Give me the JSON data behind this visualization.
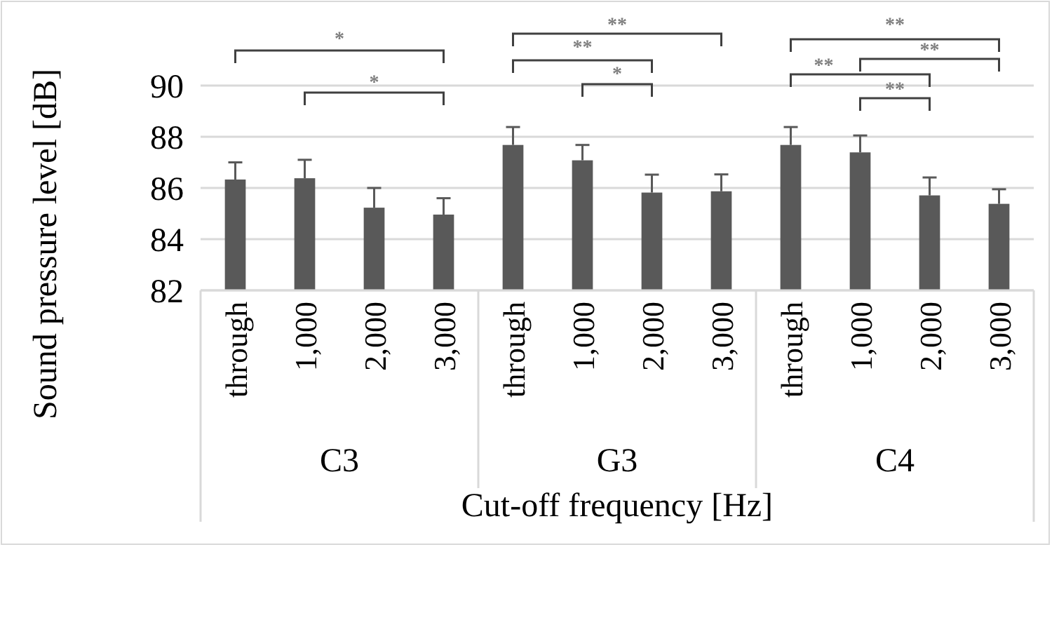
{
  "chart_data": {
    "type": "bar",
    "ylabel": "Sound pressure level [dB]",
    "xlabel": "Cut-off frequency [Hz]",
    "categories": [
      "through",
      "1,000",
      "2,000",
      "3,000",
      "through",
      "1,000",
      "2,000",
      "3,000",
      "through",
      "1,000",
      "2,000",
      "3,000"
    ],
    "values": [
      86.33,
      86.38,
      85.23,
      84.96,
      87.68,
      87.08,
      85.82,
      85.87,
      87.68,
      87.39,
      85.71,
      85.38
    ],
    "errors": [
      0.67,
      0.72,
      0.77,
      0.64,
      0.7,
      0.6,
      0.7,
      0.66,
      0.7,
      0.66,
      0.7,
      0.57
    ],
    "color": "#595959",
    "ylim": [
      82,
      90
    ],
    "yticks": [
      82,
      84,
      86,
      88,
      90
    ],
    "grid": "y",
    "annotations": [
      "C3",
      "G3",
      "C4",
      "*",
      "*",
      "**",
      "**",
      "*",
      "**",
      "**",
      "**",
      "**"
    ]
  }
}
